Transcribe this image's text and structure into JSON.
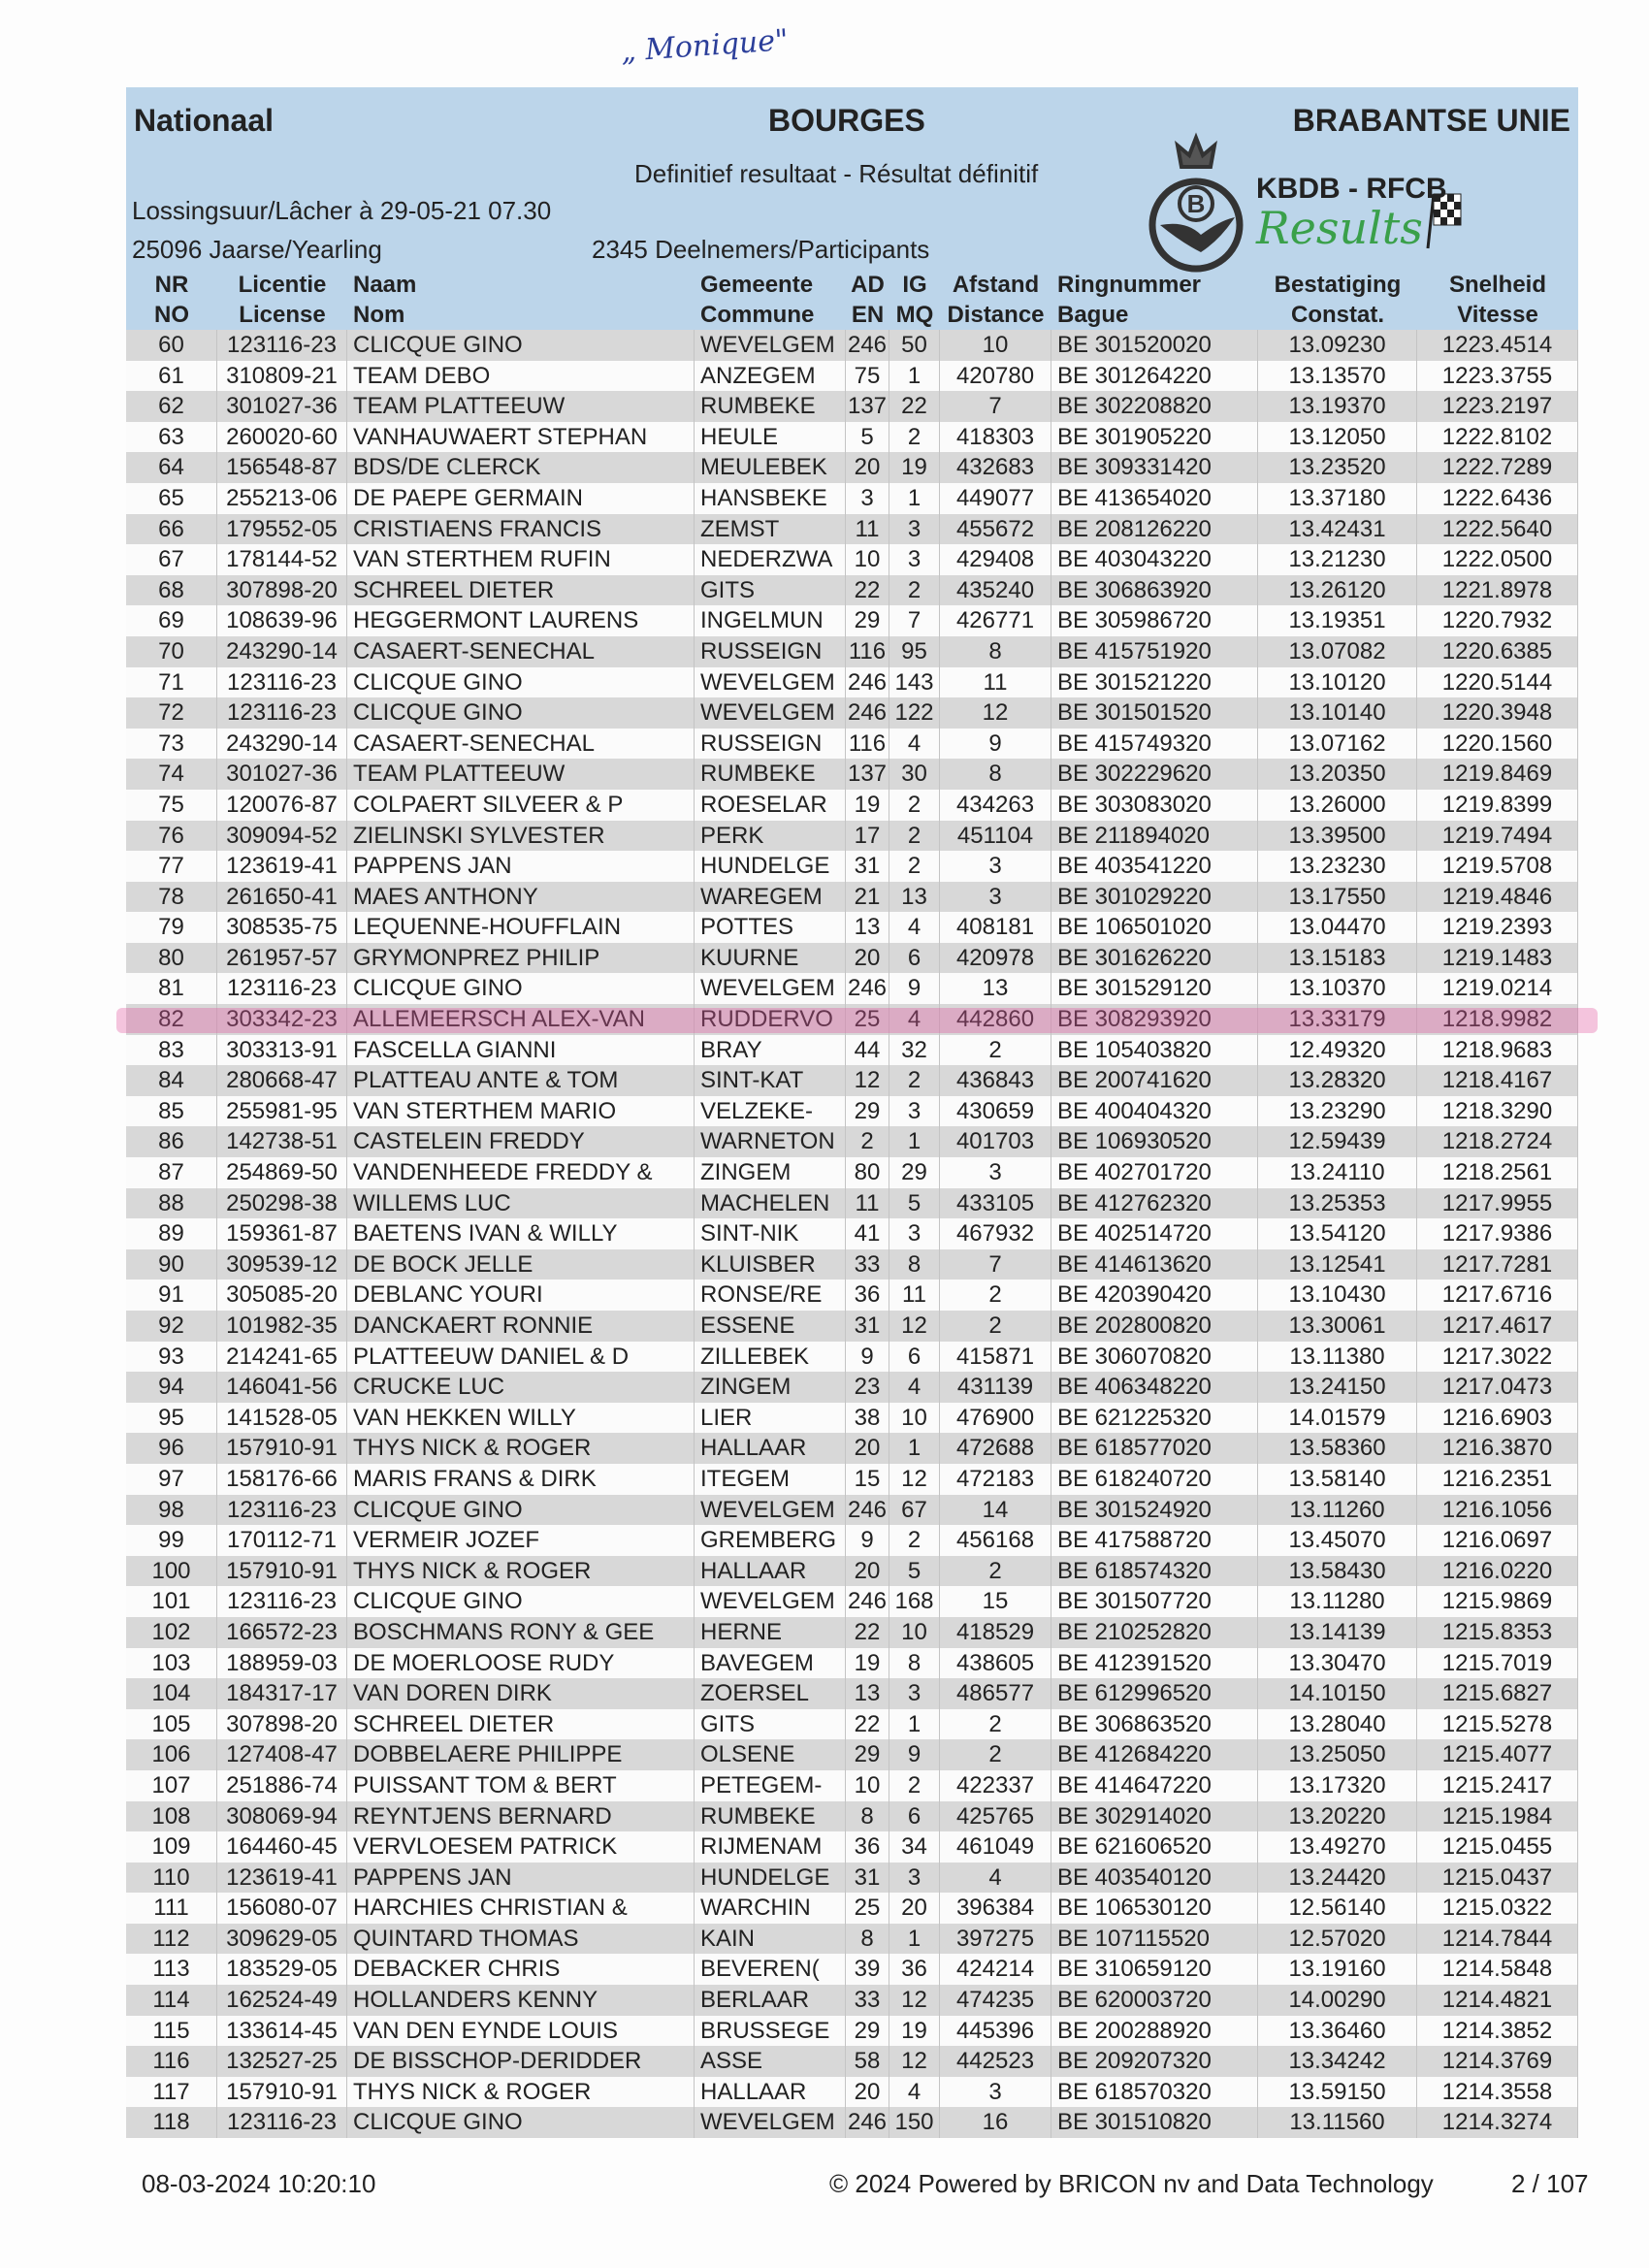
{
  "annotation": "„ Monique\"",
  "header": {
    "left_title": "Nationaal",
    "center_title": "BOURGES",
    "right_title": "BRABANTSE UNIE",
    "subtitle": "Definitief resultaat - Résultat définitif",
    "release": "Lossingsuur/Lâcher à 29-05-21 07.30",
    "category": "25096 Jaarse/Yearling",
    "participants": "2345 Deelnemers/Participants",
    "logo_org": "KBDB - RFCB",
    "logo_word": "Results",
    "logo_letter": "B",
    "colors": {
      "header_bg": "#bcd5ea",
      "results_green": "#3aa04a",
      "row_grey": "#d8d8d8",
      "highlight": "#e15aa0"
    }
  },
  "columns": [
    {
      "l1": "NR",
      "l2": "NO"
    },
    {
      "l1": "Licentie",
      "l2": "License"
    },
    {
      "l1": "Naam",
      "l2": "Nom"
    },
    {
      "l1": "Gemeente",
      "l2": "Commune"
    },
    {
      "l1": "AD",
      "l2": "EN"
    },
    {
      "l1": "IG",
      "l2": "MQ"
    },
    {
      "l1": "Afstand",
      "l2": "Distance"
    },
    {
      "l1": "Ringnummer",
      "l2": "Bague"
    },
    {
      "l1": "Bestatiging",
      "l2": "Constat."
    },
    {
      "l1": "Snelheid",
      "l2": "Vitesse"
    }
  ],
  "highlighted_nr": "82",
  "rows": [
    [
      "60",
      "123116-23",
      "CLICQUE GINO",
      "WEVELGEM",
      "246",
      "50",
      "10",
      "BE 301520020",
      "13.09230",
      "1223.4514"
    ],
    [
      "61",
      "310809-21",
      "TEAM DEBO",
      "ANZEGEM",
      "75",
      "1",
      "420780",
      "BE 301264220",
      "13.13570",
      "1223.3755"
    ],
    [
      "62",
      "301027-36",
      "TEAM PLATTEEUW",
      "RUMBEKE",
      "137",
      "22",
      "7",
      "BE 302208820",
      "13.19370",
      "1223.2197"
    ],
    [
      "63",
      "260020-60",
      "VANHAUWAERT STEPHAN",
      "HEULE",
      "5",
      "2",
      "418303",
      "BE 301905220",
      "13.12050",
      "1222.8102"
    ],
    [
      "64",
      "156548-87",
      "BDS/DE CLERCK",
      "MEULEBEK",
      "20",
      "19",
      "432683",
      "BE 309331420",
      "13.23520",
      "1222.7289"
    ],
    [
      "65",
      "255213-06",
      "DE PAEPE GERMAIN",
      "HANSBEKE",
      "3",
      "1",
      "449077",
      "BE 413654020",
      "13.37180",
      "1222.6436"
    ],
    [
      "66",
      "179552-05",
      "CRISTIAENS FRANCIS",
      "ZEMST",
      "11",
      "3",
      "455672",
      "BE 208126220",
      "13.42431",
      "1222.5640"
    ],
    [
      "67",
      "178144-52",
      "VAN STERTHEM RUFIN",
      "NEDERZWA",
      "10",
      "3",
      "429408",
      "BE 403043220",
      "13.21230",
      "1222.0500"
    ],
    [
      "68",
      "307898-20",
      "SCHREEL DIETER",
      "GITS",
      "22",
      "2",
      "435240",
      "BE 306863920",
      "13.26120",
      "1221.8978"
    ],
    [
      "69",
      "108639-96",
      "HEGGERMONT LAURENS",
      "INGELMUN",
      "29",
      "7",
      "426771",
      "BE 305986720",
      "13.19351",
      "1220.7932"
    ],
    [
      "70",
      "243290-14",
      "CASAERT-SENECHAL",
      "RUSSEIGN",
      "116",
      "95",
      "8",
      "BE 415751920",
      "13.07082",
      "1220.6385"
    ],
    [
      "71",
      "123116-23",
      "CLICQUE GINO",
      "WEVELGEM",
      "246",
      "143",
      "11",
      "BE 301521220",
      "13.10120",
      "1220.5144"
    ],
    [
      "72",
      "123116-23",
      "CLICQUE GINO",
      "WEVELGEM",
      "246",
      "122",
      "12",
      "BE 301501520",
      "13.10140",
      "1220.3948"
    ],
    [
      "73",
      "243290-14",
      "CASAERT-SENECHAL",
      "RUSSEIGN",
      "116",
      "4",
      "9",
      "BE 415749320",
      "13.07162",
      "1220.1560"
    ],
    [
      "74",
      "301027-36",
      "TEAM PLATTEEUW",
      "RUMBEKE",
      "137",
      "30",
      "8",
      "BE 302229620",
      "13.20350",
      "1219.8469"
    ],
    [
      "75",
      "120076-87",
      "COLPAERT SILVEER & P",
      "ROESELAR",
      "19",
      "2",
      "434263",
      "BE 303083020",
      "13.26000",
      "1219.8399"
    ],
    [
      "76",
      "309094-52",
      "ZIELINSKI SYLVESTER",
      "PERK",
      "17",
      "2",
      "451104",
      "BE 211894020",
      "13.39500",
      "1219.7494"
    ],
    [
      "77",
      "123619-41",
      "PAPPENS JAN",
      "HUNDELGE",
      "31",
      "2",
      "3",
      "BE 403541220",
      "13.23230",
      "1219.5708"
    ],
    [
      "78",
      "261650-41",
      "MAES ANTHONY",
      "WAREGEM",
      "21",
      "13",
      "3",
      "BE 301029220",
      "13.17550",
      "1219.4846"
    ],
    [
      "79",
      "308535-75",
      "LEQUENNE-HOUFFLAIN",
      "POTTES",
      "13",
      "4",
      "408181",
      "BE 106501020",
      "13.04470",
      "1219.2393"
    ],
    [
      "80",
      "261957-57",
      "GRYMONPREZ PHILIP",
      "KUURNE",
      "20",
      "6",
      "420978",
      "BE 301626220",
      "13.15183",
      "1219.1483"
    ],
    [
      "81",
      "123116-23",
      "CLICQUE GINO",
      "WEVELGEM",
      "246",
      "9",
      "13",
      "BE 301529120",
      "13.10370",
      "1219.0214"
    ],
    [
      "82",
      "303342-23",
      "ALLEMEERSCH ALEX-VAN",
      "RUDDERVO",
      "25",
      "4",
      "442860",
      "BE 308293920",
      "13.33179",
      "1218.9982"
    ],
    [
      "83",
      "303313-91",
      "FASCELLA GIANNI",
      "BRAY",
      "44",
      "32",
      "2",
      "BE 105403820",
      "12.49320",
      "1218.9683"
    ],
    [
      "84",
      "280668-47",
      "PLATTEAU ANTE & TOM",
      "SINT-KAT",
      "12",
      "2",
      "436843",
      "BE 200741620",
      "13.28320",
      "1218.4167"
    ],
    [
      "85",
      "255981-95",
      "VAN STERTHEM MARIO",
      "VELZEKE-",
      "29",
      "3",
      "430659",
      "BE 400404320",
      "13.23290",
      "1218.3290"
    ],
    [
      "86",
      "142738-51",
      "CASTELEIN FREDDY",
      "WARNETON",
      "2",
      "1",
      "401703",
      "BE 106930520",
      "12.59439",
      "1218.2724"
    ],
    [
      "87",
      "254869-50",
      "VANDENHEEDE FREDDY &",
      "ZINGEM",
      "80",
      "29",
      "3",
      "BE 402701720",
      "13.24110",
      "1218.2561"
    ],
    [
      "88",
      "250298-38",
      "WILLEMS LUC",
      "MACHELEN",
      "11",
      "5",
      "433105",
      "BE 412762320",
      "13.25353",
      "1217.9955"
    ],
    [
      "89",
      "159361-87",
      "BAETENS IVAN & WILLY",
      "SINT-NIK",
      "41",
      "3",
      "467932",
      "BE 402514720",
      "13.54120",
      "1217.9386"
    ],
    [
      "90",
      "309539-12",
      "DE BOCK JELLE",
      "KLUISBER",
      "33",
      "8",
      "7",
      "BE 414613620",
      "13.12541",
      "1217.7281"
    ],
    [
      "91",
      "305085-20",
      "DEBLANC YOURI",
      "RONSE/RE",
      "36",
      "11",
      "2",
      "BE 420390420",
      "13.10430",
      "1217.6716"
    ],
    [
      "92",
      "101982-35",
      "DANCKAERT RONNIE",
      "ESSENE",
      "31",
      "12",
      "2",
      "BE 202800820",
      "13.30061",
      "1217.4617"
    ],
    [
      "93",
      "214241-65",
      "PLATTEEUW DANIEL & D",
      "ZILLEBEK",
      "9",
      "6",
      "415871",
      "BE 306070820",
      "13.11380",
      "1217.3022"
    ],
    [
      "94",
      "146041-56",
      "CRUCKE LUC",
      "ZINGEM",
      "23",
      "4",
      "431139",
      "BE 406348220",
      "13.24150",
      "1217.0473"
    ],
    [
      "95",
      "141528-05",
      "VAN HEKKEN WILLY",
      "LIER",
      "38",
      "10",
      "476900",
      "BE 621225320",
      "14.01579",
      "1216.6903"
    ],
    [
      "96",
      "157910-91",
      "THYS NICK & ROGER",
      "HALLAAR",
      "20",
      "1",
      "472688",
      "BE 618577020",
      "13.58360",
      "1216.3870"
    ],
    [
      "97",
      "158176-66",
      "MARIS FRANS & DIRK",
      "ITEGEM",
      "15",
      "12",
      "472183",
      "BE 618240720",
      "13.58140",
      "1216.2351"
    ],
    [
      "98",
      "123116-23",
      "CLICQUE GINO",
      "WEVELGEM",
      "246",
      "67",
      "14",
      "BE 301524920",
      "13.11260",
      "1216.1056"
    ],
    [
      "99",
      "170112-71",
      "VERMEIR JOZEF",
      "GREMBERG",
      "9",
      "2",
      "456168",
      "BE 417588720",
      "13.45070",
      "1216.0697"
    ],
    [
      "100",
      "157910-91",
      "THYS NICK & ROGER",
      "HALLAAR",
      "20",
      "5",
      "2",
      "BE 618574320",
      "13.58430",
      "1216.0220"
    ],
    [
      "101",
      "123116-23",
      "CLICQUE GINO",
      "WEVELGEM",
      "246",
      "168",
      "15",
      "BE 301507720",
      "13.11280",
      "1215.9869"
    ],
    [
      "102",
      "166572-23",
      "BOSCHMANS RONY & GEE",
      "HERNE",
      "22",
      "10",
      "418529",
      "BE 210252820",
      "13.14139",
      "1215.8353"
    ],
    [
      "103",
      "188959-03",
      "DE MOERLOOSE RUDY",
      "BAVEGEM",
      "19",
      "8",
      "438605",
      "BE 412391520",
      "13.30470",
      "1215.7019"
    ],
    [
      "104",
      "184317-17",
      "VAN DOREN DIRK",
      "ZOERSEL",
      "13",
      "3",
      "486577",
      "BE 612996520",
      "14.10150",
      "1215.6827"
    ],
    [
      "105",
      "307898-20",
      "SCHREEL DIETER",
      "GITS",
      "22",
      "1",
      "2",
      "BE 306863520",
      "13.28040",
      "1215.5278"
    ],
    [
      "106",
      "127408-47",
      "DOBBELAERE PHILIPPE",
      "OLSENE",
      "29",
      "9",
      "2",
      "BE 412684220",
      "13.25050",
      "1215.4077"
    ],
    [
      "107",
      "251886-74",
      "PUISSANT TOM & BERT",
      "PETEGEM-",
      "10",
      "2",
      "422337",
      "BE 414647220",
      "13.17320",
      "1215.2417"
    ],
    [
      "108",
      "308069-94",
      "REYNTJENS BERNARD",
      "RUMBEKE",
      "8",
      "6",
      "425765",
      "BE 302914020",
      "13.20220",
      "1215.1984"
    ],
    [
      "109",
      "164460-45",
      "VERVLOESEM PATRICK",
      "RIJMENAM",
      "36",
      "34",
      "461049",
      "BE 621606520",
      "13.49270",
      "1215.0455"
    ],
    [
      "110",
      "123619-41",
      "PAPPENS JAN",
      "HUNDELGE",
      "31",
      "3",
      "4",
      "BE 403540120",
      "13.24420",
      "1215.0437"
    ],
    [
      "111",
      "156080-07",
      "HARCHIES CHRISTIAN &",
      "WARCHIN",
      "25",
      "20",
      "396384",
      "BE 106530120",
      "12.56140",
      "1215.0322"
    ],
    [
      "112",
      "309629-05",
      "QUINTARD THOMAS",
      "KAIN",
      "8",
      "1",
      "397275",
      "BE 107115520",
      "12.57020",
      "1214.7844"
    ],
    [
      "113",
      "183529-05",
      "DEBACKER CHRIS",
      "BEVEREN(",
      "39",
      "36",
      "424214",
      "BE 310659120",
      "13.19160",
      "1214.5848"
    ],
    [
      "114",
      "162524-49",
      "HOLLANDERS KENNY",
      "BERLAAR",
      "33",
      "12",
      "474235",
      "BE 620003720",
      "14.00290",
      "1214.4821"
    ],
    [
      "115",
      "133614-45",
      "VAN DEN EYNDE LOUIS",
      "BRUSSEGE",
      "29",
      "19",
      "445396",
      "BE 200288920",
      "13.36460",
      "1214.3852"
    ],
    [
      "116",
      "132527-25",
      "DE BISSCHOP-DERIDDER",
      "ASSE",
      "58",
      "12",
      "442523",
      "BE 209207320",
      "13.34242",
      "1214.3769"
    ],
    [
      "117",
      "157910-91",
      "THYS NICK & ROGER",
      "HALLAAR",
      "20",
      "4",
      "3",
      "BE 618570320",
      "13.59150",
      "1214.3558"
    ],
    [
      "118",
      "123116-23",
      "CLICQUE GINO",
      "WEVELGEM",
      "246",
      "150",
      "16",
      "BE 301510820",
      "13.11560",
      "1214.3274"
    ]
  ],
  "footer": {
    "timestamp": "08-03-2024 10:20:10",
    "credit": "© 2024 Powered by BRICON nv and Data Technology",
    "page": "2 / 107"
  }
}
